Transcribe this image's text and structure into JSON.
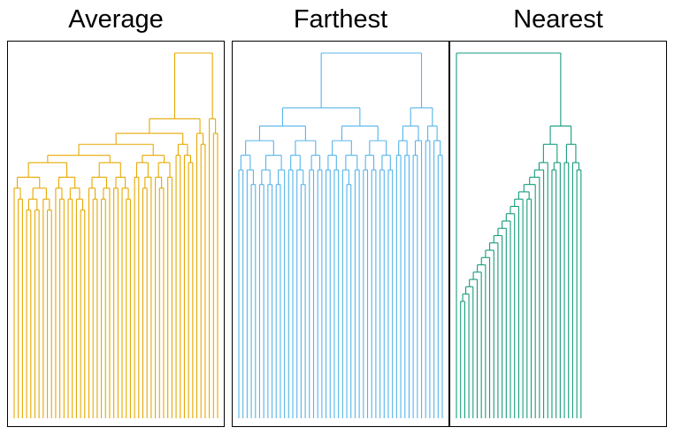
{
  "chart_data": [
    {
      "type": "dendrogram",
      "title": "Average",
      "color": "#E6A800",
      "xlabel": "",
      "ylabel": "",
      "height_range": [
        0,
        100
      ],
      "n_leaves": 50,
      "tree": [
        [
          [
            [
              [
                [
                  [
                    [
                      1,
                      [
                        2,
                        3
                      ]
                    ],
                    [
                      [
                        [
                          4,
                          5
                        ],
                        [
                          6,
                          7
                        ]
                      ],
                      [
                        8,
                        [
                          9,
                          10
                        ]
                      ]
                    ]
                  ],
                  [
                    [
                      11,
                      [
                        12,
                        13
                      ]
                    ],
                    [
                      [
                        14,
                        15
                      ],
                      [
                        16,
                        [
                          17,
                          18
                        ]
                      ]
                    ]
                  ]
                ],
                [
                  [
                    [
                      19,
                      [
                        20,
                        21
                      ]
                    ],
                    [
                      [
                        22,
                        23
                      ],
                      24
                    ]
                  ],
                  [
                    [
                      25,
                      26
                    ],
                    [
                      27,
                      [
                        28,
                        29
                      ]
                    ]
                  ]
                ]
              ],
              [
                [
                  [
                    30,
                    31
                  ],
                  [
                    [
                      32,
                      33
                    ],
                    34
                  ]
                ],
                [
                  [
                    35,
                    [
                      36,
                      37
                    ]
                  ],
                  [
                    38,
                    39
                  ]
                ]
              ]
            ],
            [
              [
                40,
                41
              ],
              [
                42,
                [
                  43,
                  44
                ]
              ]
            ]
          ],
          [
            45,
            [
              46,
              47
            ]
          ]
        ],
        [
          48,
          [
            49,
            50
          ]
        ]
      ],
      "heights": [
        100,
        82,
        78,
        75,
        72,
        70,
        66,
        63,
        60,
        57,
        54,
        51,
        48,
        45,
        42,
        39,
        36,
        33,
        30,
        27,
        24,
        21,
        18,
        15,
        12,
        10,
        9,
        8,
        7,
        6,
        5
      ]
    },
    {
      "type": "dendrogram",
      "title": "Farthest",
      "color": "#56B4E9",
      "xlabel": "",
      "ylabel": "",
      "height_range": [
        0,
        100
      ],
      "n_leaves": 50,
      "tree": [
        [
          [
            [
              [
                [
                  1,
                  2
                ],
                [
                  3,
                  [
                    4,
                    5
                  ]
                ]
              ],
              [
                [
                  [
                    6,
                    7
                  ],
                  [
                    8,
                    9
                  ]
                ],
                [
                  [
                    10,
                    11
                  ],
                  12
                ]
              ]
            ],
            [
              [
                [
                  13,
                  14
                ],
                [
                  15,
                  [
                    16,
                    17
                  ]
                ]
              ],
              [
                [
                  18,
                  19
                ],
                [
                  20,
                  21
                ]
              ]
            ]
          ],
          [
            [
              [
                [
                  22,
                  23
                ],
                [
                  24,
                  25
                ]
              ],
              [
                [
                  26,
                  [
                    27,
                    28
                  ]
                ],
                [
                  29,
                  30
                ]
              ]
            ],
            [
              [
                [
                  31,
                  32
                ],
                [
                  33,
                  34
                ]
              ],
              [
                [
                  35,
                  36
                ],
                [
                  37,
                  38
                ]
              ]
            ]
          ]
        ],
        [
          [
            [
              [
                39,
                40
              ],
              [
                41,
                42
              ]
            ],
            [
              [
                43,
                44
              ],
              45
            ]
          ],
          [
            [
              46,
              47
            ],
            [
              48,
              [
                49,
                50
              ]
            ]
          ]
        ]
      ],
      "heights": [
        100,
        85,
        80,
        76,
        72,
        68,
        64,
        60,
        56,
        52,
        48,
        44,
        40,
        36,
        32,
        28,
        24,
        20,
        16,
        12,
        10,
        8,
        6,
        5
      ]
    },
    {
      "type": "dendrogram",
      "title": "Nearest",
      "color": "#169B7D",
      "xlabel": "",
      "ylabel": "",
      "height_range": [
        0,
        100
      ],
      "n_leaves": 50,
      "tree": [
        1,
        [
          [
            [
              [
                [
                  [
                    [
                      [
                        [
                          [
                            [
                              [
                                [
                                  [
                                    [
                                      [
                                        [
                                          [
                                            [
                                              [
                                                [
                                                  [
                                                    2,
                                                    3
                                                  ],
                                                  4
                                                ],
                                                5
                                              ],
                                              6
                                            ],
                                            7
                                          ],
                                          8
                                        ],
                                        9
                                      ],
                                      10
                                    ],
                                    11
                                  ],
                                  12
                                ],
                                13
                              ],
                              14
                            ],
                            15
                          ],
                          16
                        ],
                        17
                      ],
                      [
                        18,
                        19
                      ]
                    ],
                    20
                  ],
                  21
                ],
                22
              ],
              23
            ],
            [
              [
                24,
                25
              ],
              26
            ]
          ],
          [
            [
              27,
              28
            ],
            [
              29,
              [
                30,
                31
              ]
            ]
          ]
        ]
      ],
      "heights": [
        100,
        80,
        75,
        70,
        68,
        66,
        64,
        62,
        60,
        58,
        56,
        54,
        52,
        50,
        48,
        46,
        44,
        42,
        40,
        38,
        36,
        34,
        32,
        30,
        28,
        26,
        24,
        22,
        20,
        18,
        16,
        14,
        12,
        10,
        8,
        6,
        5
      ]
    }
  ]
}
